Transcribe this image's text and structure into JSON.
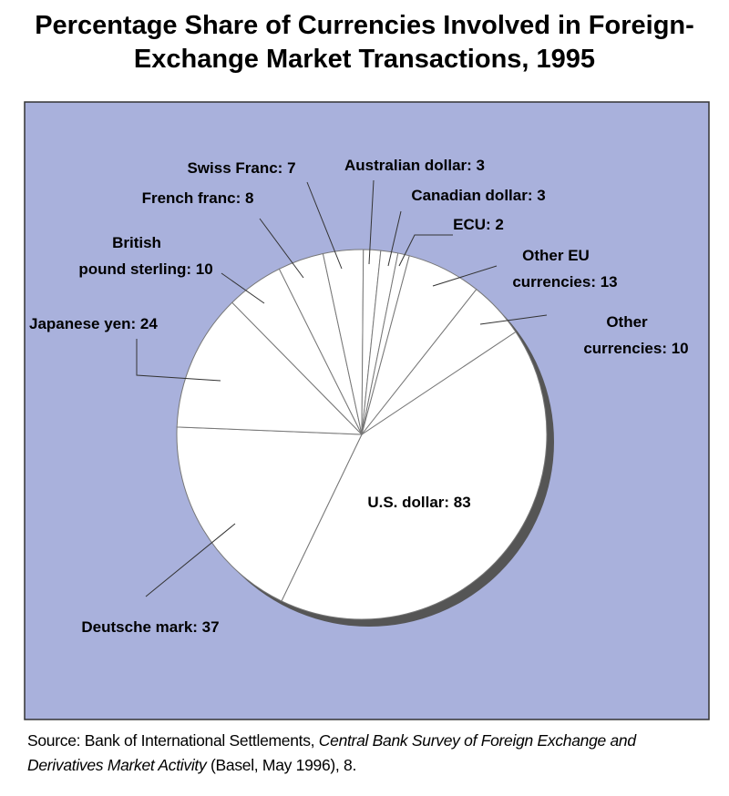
{
  "chart_data": {
    "type": "pie",
    "title": "Percentage Share of Currencies Involved in Foreign-Exchange Market Transactions, 1995",
    "categories": [
      "U.S. dollar",
      "Deutsche mark",
      "Japanese yen",
      "British pound sterling",
      "French franc",
      "Swiss Franc",
      "Australian dollar",
      "Canadian dollar",
      "ECU",
      "Other EU currencies",
      "Other currencies"
    ],
    "values": [
      83,
      37,
      24,
      10,
      8,
      7,
      3,
      3,
      2,
      13,
      10
    ],
    "value_labels": [
      "U.S. dollar: 83",
      "Deutsche mark: 37",
      "Japanese yen: 24",
      "British\npound sterling: 10",
      "French franc: 8",
      "Swiss Franc: 7",
      "Australian dollar: 3",
      "Canadian dollar: 3",
      "ECU: 2",
      "Other EU\ncurrencies: 13",
      "Other\ncurrencies: 10"
    ],
    "color": "#ffffff",
    "background": "#a9b1dc"
  },
  "source": {
    "prefix": "Source: Bank of International Settlements, ",
    "title": "Central Bank Survey of Foreign Exchange and Derivatives  Market Activity",
    "suffix": " (Basel, May 1996), 8."
  }
}
